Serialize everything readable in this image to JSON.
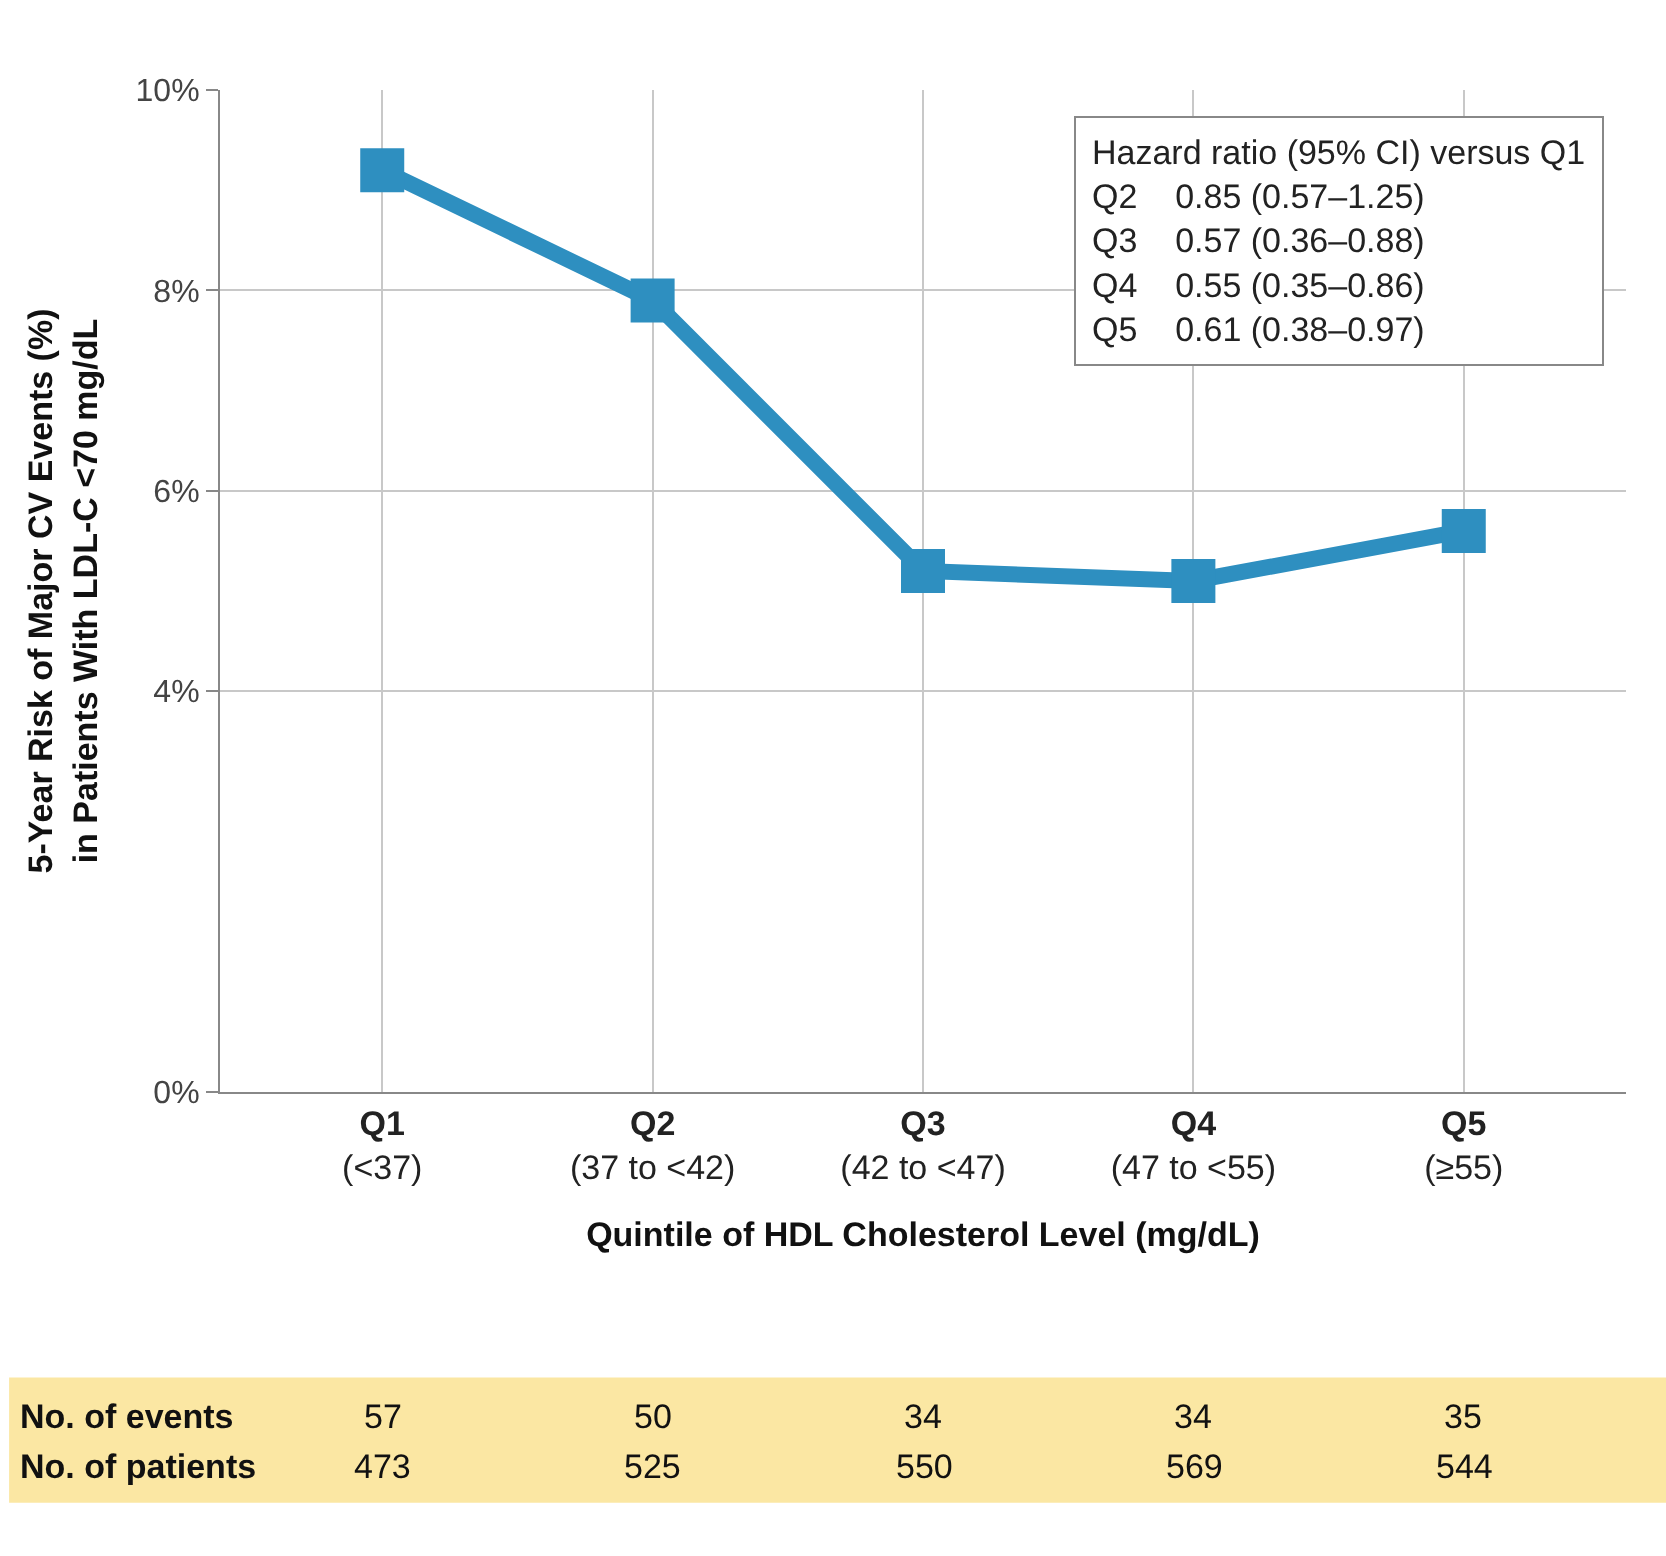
{
  "chart_data": {
    "type": "line",
    "xlabel": "Quintile of HDL Cholesterol Level (mg/dL)",
    "ylabel": "5-Year Risk of Major CV Events (%)\nin Patients With LDL-C <70 mg/dL",
    "categories": [
      "Q1\n(<37)",
      "Q2\n(37 to <42)",
      "Q3\n(42 to <47)",
      "Q4\n(47 to <55)",
      "Q5\n(≥55)"
    ],
    "series": [
      {
        "color": "#2e8fc0",
        "values": [
          9.2,
          7.9,
          5.2,
          5.1,
          5.6
        ]
      }
    ],
    "ylim": [
      0,
      10
    ],
    "yticks": [
      {
        "value": 0,
        "label": "0%"
      },
      {
        "value": 4,
        "label": "4%"
      },
      {
        "value": 6,
        "label": "6%"
      },
      {
        "value": 8,
        "label": "8%"
      },
      {
        "value": 10,
        "label": "10%"
      }
    ],
    "grid": true,
    "legend": false,
    "marker": "square",
    "line_style": "solid",
    "annotations": [
      "Hazard ratio (95% CI) versus Q1\nQ2    0.85 (0.57–1.25)\nQ3    0.57 (0.36–0.88)\nQ4    0.55 (0.35–0.86)\nQ5    0.61 (0.38–0.97)",
      "No. of events",
      "57",
      "50",
      "34",
      "34",
      "35",
      "No. of patients",
      "473",
      "525",
      "550",
      "569",
      "544"
    ]
  }
}
